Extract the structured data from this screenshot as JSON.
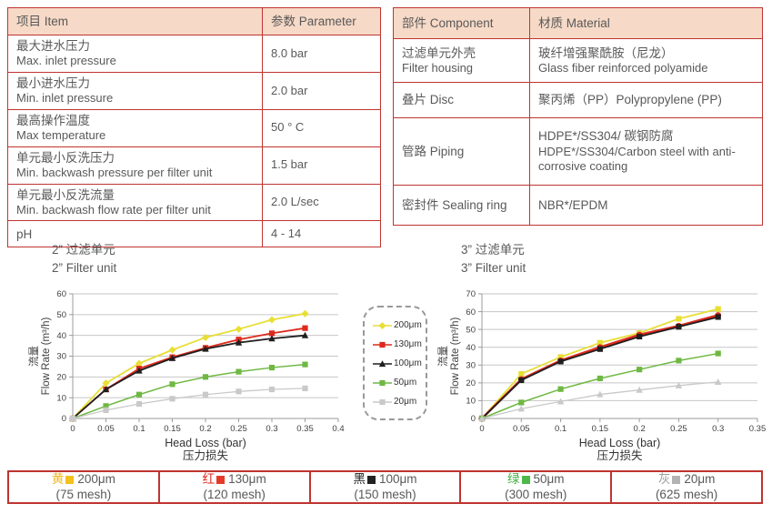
{
  "colors": {
    "table_border": "#bf3430",
    "header_bg": "#f6d9c6",
    "text": "#595959",
    "grid": "#c6c6c6",
    "axis": "#9b9b9b"
  },
  "param_table": {
    "headers": [
      "项目 Item",
      "参数 Parameter"
    ],
    "rows": [
      {
        "item_cn": "最大进水压力",
        "item_en": "Max. inlet pressure",
        "value": "8.0 bar"
      },
      {
        "item_cn": "最小进水压力",
        "item_en": "Min. inlet pressure",
        "value": "2.0 bar"
      },
      {
        "item_cn": "最高操作温度",
        "item_en": "Max temperature",
        "value": "50 ° C"
      },
      {
        "item_cn": "单元最小反洗压力",
        "item_en": "Min. backwash pressure per filter unit",
        "value": "1.5 bar"
      },
      {
        "item_cn": "单元最小反洗流量",
        "item_en": "Min. backwash flow rate per filter unit",
        "value": "2.0 L/sec"
      },
      {
        "item_cn": "pH",
        "item_en": "",
        "value": "4 - 14"
      }
    ]
  },
  "material_table": {
    "headers": [
      "部件 Component",
      "材质 Material"
    ],
    "rows": [
      {
        "component_cn": "过滤单元外壳",
        "component_en": "Filter housing",
        "material_cn": "玻纤增强聚酰胺（尼龙）",
        "material_en": "Glass fiber reinforced polyamide"
      },
      {
        "component_cn": "叠片 Disc",
        "component_en": "",
        "material_cn": "聚丙烯（PP）Polypropylene (PP)",
        "material_en": ""
      },
      {
        "component_cn": "管路 Piping",
        "component_en": "",
        "material_cn": "HDPE*/SS304/ 碳钢防腐",
        "material_en": "HDPE*/SS304/Carbon steel with anti-corrosive coating"
      },
      {
        "component_cn": "密封件 Sealing ring",
        "component_en": "",
        "material_cn": "NBR*/EPDM",
        "material_en": ""
      }
    ]
  },
  "chart_data": [
    {
      "type": "line",
      "title_cn": "2” 过滤单元",
      "title_en": "2” Filter unit",
      "xlabel": "Head Loss (bar)",
      "xlabel_cn": "压力损失",
      "ylabel_cn": "流量",
      "ylabel": "Flow Rate (m³/h)",
      "xlim": [
        0,
        0.4
      ],
      "ylim": [
        0,
        60
      ],
      "ytick_step": 10,
      "xticks": [
        0,
        0.05,
        0.1,
        0.15,
        0.2,
        0.25,
        0.3,
        0.35,
        0.4
      ],
      "xtick_labels": [
        "0",
        "0.05",
        "0.1",
        "0.15",
        "0.2",
        "0.25",
        "0.3",
        "0.35",
        "0.4"
      ],
      "x": [
        0,
        0.05,
        0.1,
        0.15,
        0.2,
        0.25,
        0.3,
        0.35
      ],
      "grid": "horizontal",
      "series": [
        {
          "name": "200μm",
          "color": "#e7df35",
          "marker": "diamond",
          "width": 1.8,
          "values": [
            0,
            17,
            26.5,
            33,
            39,
            43,
            47.5,
            50.5
          ]
        },
        {
          "name": "130μm",
          "color": "#df291d",
          "marker": "square",
          "width": 1.8,
          "values": [
            0,
            14,
            24,
            29.5,
            34,
            38,
            41,
            43.5
          ]
        },
        {
          "name": "100μm",
          "color": "#1f1f1f",
          "marker": "triangle",
          "width": 1.8,
          "values": [
            0,
            14,
            23,
            29,
            33.5,
            36.5,
            38.5,
            40
          ]
        },
        {
          "name": "50μm",
          "color": "#6fb843",
          "marker": "square",
          "width": 1.5,
          "values": [
            0,
            6,
            11.5,
            16.5,
            20,
            22.5,
            24.5,
            26
          ]
        },
        {
          "name": "20μm",
          "color": "#c9c9c9",
          "marker": "square",
          "width": 1.3,
          "values": [
            0,
            4,
            7,
            9.5,
            11.5,
            13,
            14,
            14.5
          ]
        }
      ]
    },
    {
      "type": "line",
      "title_cn": "3” 过滤单元",
      "title_en": "3” Filter unit",
      "xlabel": "Head Loss (bar)",
      "xlabel_cn": "压力损失",
      "ylabel_cn": "流量",
      "ylabel": "Flow Rate (m³/h)",
      "xlim": [
        0,
        0.35
      ],
      "ylim": [
        0,
        70
      ],
      "ytick_step": 10,
      "xticks": [
        0,
        0.05,
        0.1,
        0.15,
        0.2,
        0.25,
        0.3,
        0.35
      ],
      "xtick_labels": [
        "0",
        "0.05",
        "0.1",
        "0.15",
        "0.2",
        "0.25",
        "0.3",
        "0.35"
      ],
      "x": [
        0,
        0.05,
        0.1,
        0.15,
        0.2,
        0.25,
        0.3
      ],
      "grid": "horizontal",
      "series": [
        {
          "name": "200μm",
          "color": "#e7df35",
          "marker": "square",
          "width": 1.8,
          "values": [
            0,
            25,
            34.5,
            42.5,
            48,
            56,
            61.5
          ]
        },
        {
          "name": "130μm",
          "color": "#df291d",
          "marker": "circle",
          "width": 2.6,
          "values": [
            0,
            22,
            32.5,
            40,
            47,
            52,
            58
          ]
        },
        {
          "name": "100μm",
          "color": "#1f1f1f",
          "marker": "square",
          "width": 1.8,
          "values": [
            0,
            21.5,
            32,
            39,
            46,
            51.5,
            57
          ]
        },
        {
          "name": "50μm",
          "color": "#6fb843",
          "marker": "square",
          "width": 1.5,
          "values": [
            0,
            9,
            16.5,
            22.5,
            27.5,
            32.5,
            36.5
          ]
        },
        {
          "name": "20μm",
          "color": "#c9c9c9",
          "marker": "triangle",
          "width": 1.3,
          "values": [
            0,
            5.5,
            9.5,
            13.5,
            16,
            18.5,
            20.5
          ]
        }
      ]
    }
  ],
  "mid_legend": {
    "items": [
      "200μm",
      "130μm",
      "100μm",
      "50μm",
      "20μm"
    ]
  },
  "bottom_legend": {
    "cells": [
      {
        "cn": "黄",
        "size": "200μm",
        "mesh": "(75 mesh)",
        "char_color": "#efb71f",
        "square_color": "#f3c11d"
      },
      {
        "cn": "红",
        "size": "130μm",
        "mesh": "(120 mesh)",
        "char_color": "#df291d",
        "square_color": "#e53a2a"
      },
      {
        "cn": "黑",
        "size": "100μm",
        "mesh": "(150 mesh)",
        "char_color": "#222222",
        "square_color": "#222222"
      },
      {
        "cn": "绿",
        "size": "50μm",
        "mesh": "(300 mesh)",
        "char_color": "#45b043",
        "square_color": "#4db848"
      },
      {
        "cn": "灰",
        "size": "20μm",
        "mesh": "(625 mesh)",
        "char_color": "#9f9f9f",
        "square_color": "#b3b3b3"
      }
    ]
  }
}
